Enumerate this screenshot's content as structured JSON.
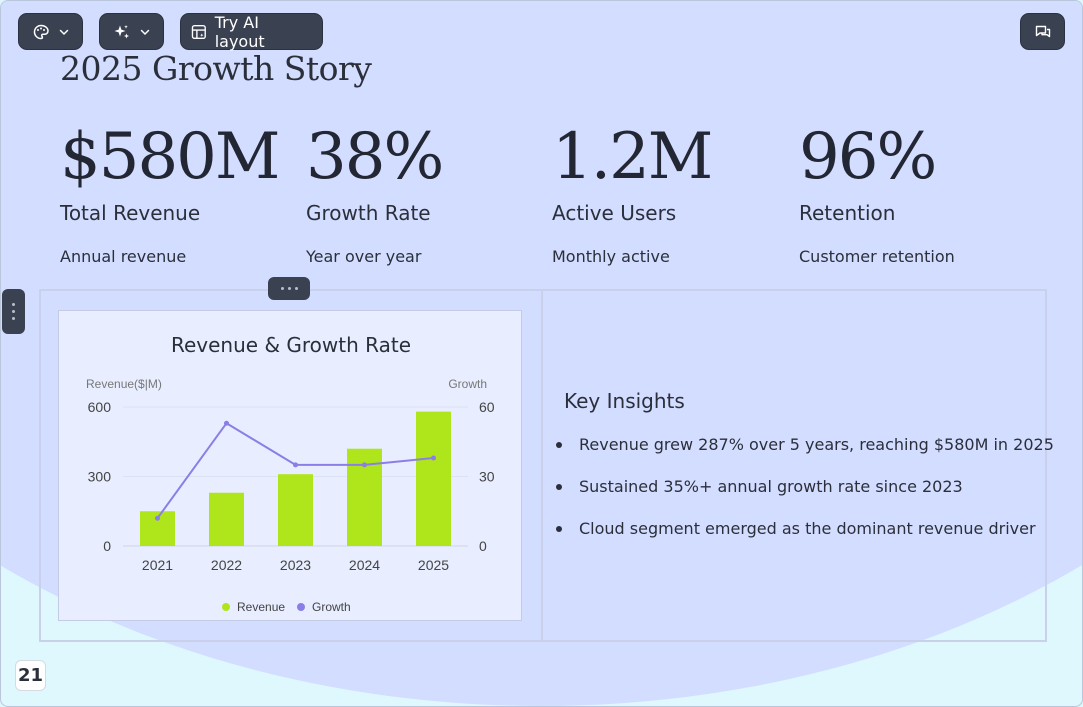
{
  "toolbar": {
    "palette_icon": "palette-icon",
    "sparkle_icon": "sparkle-icon",
    "layout_icon": "layout-icon",
    "layout_label": "Try AI layout",
    "comment_icon": "comment-icon"
  },
  "slide": {
    "title": "2025 Growth Story",
    "page_number": "21",
    "stats": [
      {
        "value": "$580M",
        "label": "Total Revenue",
        "sub": "Annual revenue"
      },
      {
        "value": "38%",
        "label": "Growth Rate",
        "sub": "Year over year"
      },
      {
        "value": "1.2M",
        "label": "Active Users",
        "sub": "Monthly active"
      },
      {
        "value": "96%",
        "label": "Retention",
        "sub": "Customer retention"
      }
    ],
    "insights": {
      "title": "Key Insights",
      "items": [
        "Revenue grew 287% over 5 years, reaching $580M in 2025",
        "Sustained 35%+ annual growth rate since 2023",
        "Cloud segment emerged as the dominant revenue driver"
      ]
    }
  },
  "colors": {
    "revenue": "#aee61b",
    "growth": "#8b7ee6",
    "text": "#2a2f3a"
  },
  "chart_data": {
    "type": "bar",
    "title": "Revenue & Growth Rate",
    "categories": [
      "2021",
      "2022",
      "2023",
      "2024",
      "2025"
    ],
    "ylabel": "Revenue($|M)",
    "y2label": "Growth",
    "ylim": [
      0,
      600
    ],
    "y2lim": [
      0,
      60
    ],
    "yticks": [
      "0",
      "300",
      "600"
    ],
    "y2ticks": [
      "0",
      "30",
      "60"
    ],
    "legend": "bottom",
    "grid": true,
    "series": [
      {
        "name": "Revenue",
        "type": "bar",
        "axis": "left",
        "values": [
          150,
          230,
          310,
          420,
          580
        ]
      },
      {
        "name": "Growth",
        "type": "line",
        "axis": "right",
        "values": [
          12,
          53,
          35,
          35,
          38
        ]
      }
    ]
  }
}
